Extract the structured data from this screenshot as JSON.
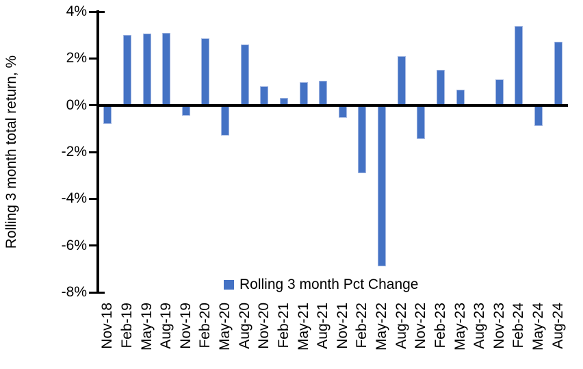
{
  "chart_data": {
    "type": "bar",
    "title": "",
    "xlabel": "",
    "ylabel": "Rolling 3 month total return, %",
    "ylim": [
      -8,
      4
    ],
    "grid": false,
    "legend_position": "bottom-center-inside",
    "legend_label": "Rolling 3 month Pct Change",
    "bar_color": "#4472C4",
    "bar_border_color": "#A3B7E2",
    "axis_color": "#000000",
    "yticks": [
      {
        "label": "4%",
        "value": 4
      },
      {
        "label": "2%",
        "value": 2
      },
      {
        "label": "0%",
        "value": 0
      },
      {
        "label": "-2%",
        "value": -2
      },
      {
        "label": "-4%",
        "value": -4
      },
      {
        "label": "-6%",
        "value": -6
      },
      {
        "label": "-8%",
        "value": -8
      }
    ],
    "categories": [
      "Nov-18",
      "Feb-19",
      "May-19",
      "Aug-19",
      "Nov-19",
      "Feb-20",
      "May-20",
      "Aug-20",
      "Nov-20",
      "Feb-21",
      "May-21",
      "Aug-21",
      "Nov-21",
      "Feb-22",
      "May-22",
      "Aug-22",
      "Nov-22",
      "Feb-23",
      "May-23",
      "Aug-23",
      "Nov-23",
      "Feb-24",
      "May-24",
      "Aug-24"
    ],
    "values": [
      -0.8,
      3.0,
      3.05,
      3.1,
      -0.45,
      2.85,
      -1.3,
      2.6,
      0.8,
      0.3,
      1.0,
      1.05,
      -0.55,
      -2.9,
      -6.9,
      2.1,
      -1.45,
      1.5,
      0.65,
      0.0,
      1.1,
      3.4,
      -0.9,
      2.7
    ]
  }
}
